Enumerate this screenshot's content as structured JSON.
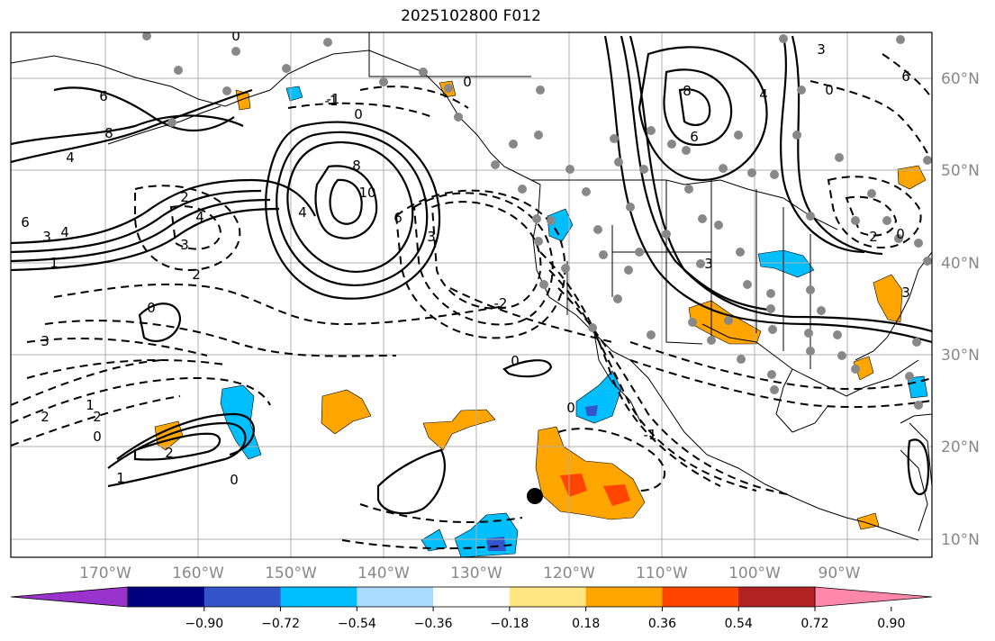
{
  "title": "2025102800 F012",
  "map": {
    "lat_labels": [
      "60°N",
      "50°N",
      "40°N",
      "30°N",
      "20°N",
      "10°N"
    ],
    "lon_labels": [
      "170°W",
      "160°W",
      "150°W",
      "140°W",
      "130°W",
      "120°W",
      "110°W",
      "100°W",
      "90°W"
    ],
    "contour_labels": [
      "6",
      "8",
      "4",
      "6",
      "3",
      "4",
      "1",
      "0",
      "-1",
      "0",
      "8",
      "10",
      "6",
      "4",
      "3",
      "2",
      "4",
      "3",
      "2",
      "2",
      "0",
      "3",
      "2",
      "1",
      "0",
      "2",
      "0",
      "1",
      "0",
      "-1",
      "0",
      "-2",
      "-3",
      "-1",
      "8",
      "6",
      "4",
      "3",
      "0",
      "3",
      "6",
      "2",
      "0",
      "3",
      "0"
    ]
  },
  "colorbar": {
    "colors": [
      "#9933cc",
      "#000080",
      "#3355cc",
      "#00bfff",
      "#aadcff",
      "#ffffff",
      "#ffe680",
      "#ffa500",
      "#ff4500",
      "#b22222",
      "#ff88aa"
    ],
    "tick_labels": [
      "−0.90",
      "−0.72",
      "−0.54",
      "−0.36",
      "−0.18",
      "0.18",
      "0.36",
      "0.54",
      "0.72",
      "0.90"
    ]
  }
}
